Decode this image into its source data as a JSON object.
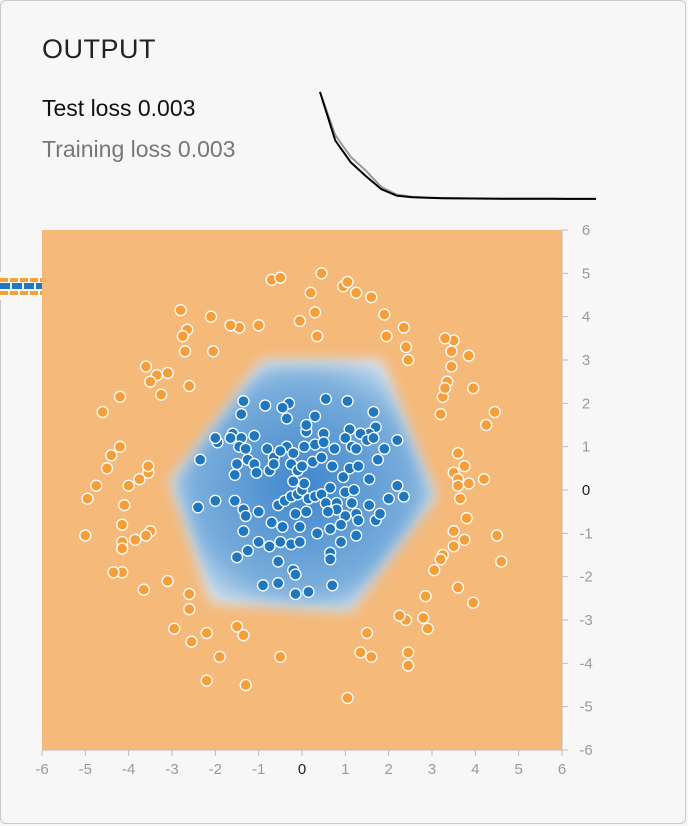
{
  "header": {
    "title": "OUTPUT",
    "test_loss": "Test loss 0.003",
    "training_loss": "Training loss 0.003"
  },
  "loss_curve": {
    "test": [
      1.0,
      0.55,
      0.35,
      0.22,
      0.1,
      0.04,
      0.025,
      0.02,
      0.017,
      0.015,
      0.014,
      0.013,
      0.012,
      0.012,
      0.011,
      0.011,
      0.01,
      0.01,
      0.01
    ],
    "train": [
      1.0,
      0.6,
      0.4,
      0.27,
      0.12,
      0.05,
      0.03,
      0.022,
      0.018,
      0.016,
      0.014,
      0.013,
      0.012,
      0.012,
      0.011,
      0.011,
      0.01,
      0.01,
      0.01
    ]
  },
  "chart_data": {
    "type": "scatter",
    "title": "",
    "xlim": [
      -6,
      6
    ],
    "ylim": [
      -6,
      6
    ],
    "x_ticks": [
      "-6",
      "-5",
      "-4",
      "-3",
      "-2",
      "-1",
      "0",
      "1",
      "2",
      "3",
      "4",
      "5",
      "6"
    ],
    "y_ticks": [
      "6",
      "5",
      "4",
      "3",
      "2",
      "1",
      "0",
      "-1",
      "-2",
      "-3",
      "-4",
      "-5",
      "-6"
    ],
    "highlight_tick": "0",
    "colors": {
      "positive": "#f59f3a",
      "negative": "#1f77c0",
      "background": "#f5b97a",
      "region": "#4a90d2"
    },
    "decision_region": [
      [
        -0.9,
        2.95
      ],
      [
        1.8,
        2.95
      ],
      [
        3.05,
        -0.15
      ],
      [
        1.1,
        -2.75
      ],
      [
        -2.05,
        -2.55
      ],
      [
        -3.0,
        0.2
      ]
    ],
    "series": [
      {
        "class": "orange",
        "points": [
          [
            -0.7,
            4.85
          ],
          [
            -0.5,
            4.9
          ],
          [
            0.45,
            5.0
          ],
          [
            0.2,
            4.55
          ],
          [
            0.95,
            4.7
          ],
          [
            1.05,
            4.8
          ],
          [
            1.25,
            4.55
          ],
          [
            1.6,
            4.45
          ],
          [
            0.3,
            4.1
          ],
          [
            1.9,
            4.05
          ],
          [
            2.35,
            3.75
          ],
          [
            -0.05,
            3.9
          ],
          [
            0.35,
            3.55
          ],
          [
            -1.0,
            3.8
          ],
          [
            -1.45,
            3.75
          ],
          [
            -1.65,
            3.8
          ],
          [
            -2.1,
            4.0
          ],
          [
            -2.8,
            4.15
          ],
          [
            -2.65,
            3.7
          ],
          [
            -2.75,
            3.55
          ],
          [
            -2.05,
            3.2
          ],
          [
            -2.7,
            3.2
          ],
          [
            -3.6,
            2.85
          ],
          [
            -3.35,
            2.65
          ],
          [
            -3.1,
            2.7
          ],
          [
            -3.5,
            2.5
          ],
          [
            -3.25,
            2.2
          ],
          [
            -2.6,
            2.4
          ],
          [
            -4.2,
            2.15
          ],
          [
            -4.6,
            1.8
          ],
          [
            -4.2,
            1.0
          ],
          [
            -4.4,
            0.8
          ],
          [
            -4.5,
            0.5
          ],
          [
            -4.95,
            -0.2
          ],
          [
            -4.75,
            0.1
          ],
          [
            -4.1,
            -0.35
          ],
          [
            -3.55,
            0.4
          ],
          [
            -3.55,
            0.55
          ],
          [
            -3.75,
            0.25
          ],
          [
            -4.0,
            0.1
          ],
          [
            -3.5,
            -0.95
          ],
          [
            -3.6,
            -1.05
          ],
          [
            -4.15,
            -0.8
          ],
          [
            -4.15,
            -1.2
          ],
          [
            -4.15,
            -1.35
          ],
          [
            -3.85,
            -1.15
          ],
          [
            -5.0,
            -1.05
          ],
          [
            -4.15,
            -1.9
          ],
          [
            -4.35,
            -1.9
          ],
          [
            -3.65,
            -2.3
          ],
          [
            -3.1,
            -2.1
          ],
          [
            -2.6,
            -2.4
          ],
          [
            -2.6,
            -2.75
          ],
          [
            -2.95,
            -3.2
          ],
          [
            -2.55,
            -3.5
          ],
          [
            -2.2,
            -3.3
          ],
          [
            -1.5,
            -3.15
          ],
          [
            -1.35,
            -3.35
          ],
          [
            -1.9,
            -3.85
          ],
          [
            -1.3,
            -4.5
          ],
          [
            -0.5,
            -3.85
          ],
          [
            -2.2,
            -4.4
          ],
          [
            1.5,
            -3.3
          ],
          [
            1.35,
            -3.75
          ],
          [
            1.6,
            -3.85
          ],
          [
            1.05,
            -4.8
          ],
          [
            2.4,
            -3.0
          ],
          [
            2.25,
            -2.9
          ],
          [
            2.8,
            -2.95
          ],
          [
            2.9,
            -3.2
          ],
          [
            2.45,
            -3.75
          ],
          [
            2.45,
            -4.05
          ],
          [
            2.85,
            -2.45
          ],
          [
            3.05,
            -1.85
          ],
          [
            3.25,
            -1.5
          ],
          [
            3.2,
            -1.6
          ],
          [
            3.5,
            -1.3
          ],
          [
            3.5,
            -0.95
          ],
          [
            3.8,
            -0.65
          ],
          [
            3.75,
            -1.15
          ],
          [
            3.6,
            -2.25
          ],
          [
            3.95,
            -2.6
          ],
          [
            4.5,
            -1.05
          ],
          [
            4.6,
            -1.65
          ],
          [
            3.5,
            0.4
          ],
          [
            3.6,
            0.25
          ],
          [
            3.6,
            0.1
          ],
          [
            3.65,
            -0.2
          ],
          [
            3.85,
            0.15
          ],
          [
            3.6,
            0.85
          ],
          [
            3.75,
            0.55
          ],
          [
            4.2,
            0.25
          ],
          [
            3.2,
            1.75
          ],
          [
            3.25,
            2.15
          ],
          [
            3.35,
            2.5
          ],
          [
            3.3,
            2.35
          ],
          [
            3.45,
            2.85
          ],
          [
            3.45,
            3.2
          ],
          [
            3.5,
            3.45
          ],
          [
            3.3,
            3.5
          ],
          [
            3.85,
            3.1
          ],
          [
            3.95,
            2.35
          ],
          [
            4.25,
            1.5
          ],
          [
            4.45,
            1.8
          ],
          [
            2.4,
            3.3
          ],
          [
            2.45,
            3.0
          ],
          [
            1.95,
            3.55
          ]
        ]
      },
      {
        "class": "blue",
        "points": [
          [
            0.55,
            2.1
          ],
          [
            1.05,
            2.05
          ],
          [
            -1.35,
            2.05
          ],
          [
            -0.3,
            2.0
          ],
          [
            -0.85,
            1.95
          ],
          [
            -0.45,
            1.9
          ],
          [
            -0.35,
            1.65
          ],
          [
            0.3,
            1.7
          ],
          [
            0.1,
            1.35
          ],
          [
            0.1,
            1.5
          ],
          [
            0.5,
            1.3
          ],
          [
            1.1,
            1.4
          ],
          [
            1.65,
            1.8
          ],
          [
            1.7,
            1.45
          ],
          [
            1.55,
            1.3
          ],
          [
            1.35,
            1.3
          ],
          [
            1.5,
            1.15
          ],
          [
            1.65,
            1.2
          ],
          [
            -1.4,
            1.75
          ],
          [
            -1.6,
            1.3
          ],
          [
            -1.4,
            1.2
          ],
          [
            -1.65,
            1.2
          ],
          [
            -1.95,
            1.1
          ],
          [
            -2.0,
            1.2
          ],
          [
            -1.45,
            1.0
          ],
          [
            -1.1,
            1.25
          ],
          [
            -1.3,
            0.95
          ],
          [
            -1.25,
            0.7
          ],
          [
            -1.5,
            0.6
          ],
          [
            -0.8,
            0.95
          ],
          [
            -0.65,
            0.75
          ],
          [
            -0.35,
            1.0
          ],
          [
            -0.5,
            0.9
          ],
          [
            -0.2,
            0.85
          ],
          [
            0.05,
            1.0
          ],
          [
            0.3,
            1.05
          ],
          [
            0.5,
            1.1
          ],
          [
            0.75,
            0.95
          ],
          [
            1.0,
            1.2
          ],
          [
            1.15,
            1.0
          ],
          [
            1.25,
            0.95
          ],
          [
            1.75,
            0.7
          ],
          [
            1.9,
            0.95
          ],
          [
            2.2,
            1.15
          ],
          [
            -2.35,
            0.7
          ],
          [
            -1.55,
            0.35
          ],
          [
            -1.1,
            0.6
          ],
          [
            -1.05,
            0.4
          ],
          [
            -0.75,
            0.45
          ],
          [
            -0.65,
            0.6
          ],
          [
            -0.25,
            0.6
          ],
          [
            -0.1,
            0.45
          ],
          [
            0.0,
            0.55
          ],
          [
            0.25,
            0.65
          ],
          [
            0.45,
            0.75
          ],
          [
            0.7,
            0.55
          ],
          [
            0.95,
            0.3
          ],
          [
            1.1,
            0.5
          ],
          [
            1.3,
            0.55
          ],
          [
            1.55,
            0.25
          ],
          [
            -2.4,
            -0.4
          ],
          [
            -2.0,
            -0.25
          ],
          [
            -1.55,
            -0.25
          ],
          [
            -1.35,
            -0.45
          ],
          [
            -1.0,
            -0.5
          ],
          [
            -1.3,
            -0.6
          ],
          [
            -0.55,
            -0.35
          ],
          [
            -0.4,
            -0.25
          ],
          [
            -0.25,
            -0.15
          ],
          [
            -0.1,
            -0.1
          ],
          [
            0.0,
            0.0
          ],
          [
            0.05,
            0.15
          ],
          [
            -0.2,
            0.2
          ],
          [
            0.15,
            -0.2
          ],
          [
            0.3,
            -0.15
          ],
          [
            0.45,
            -0.1
          ],
          [
            0.65,
            0.05
          ],
          [
            0.55,
            -0.3
          ],
          [
            0.8,
            -0.3
          ],
          [
            1.0,
            -0.05
          ],
          [
            1.2,
            0.0
          ],
          [
            1.15,
            -0.3
          ],
          [
            1.25,
            -0.55
          ],
          [
            1.0,
            -0.6
          ],
          [
            0.8,
            -0.45
          ],
          [
            1.55,
            -0.35
          ],
          [
            1.7,
            -0.7
          ],
          [
            2.0,
            -0.2
          ],
          [
            2.2,
            0.1
          ],
          [
            2.35,
            -0.15
          ],
          [
            -1.35,
            -0.95
          ],
          [
            -0.7,
            -0.75
          ],
          [
            -0.45,
            -0.85
          ],
          [
            -0.15,
            -0.55
          ],
          [
            -0.05,
            -0.85
          ],
          [
            0.1,
            -0.5
          ],
          [
            0.6,
            -0.5
          ],
          [
            0.35,
            -1.0
          ],
          [
            0.65,
            -0.9
          ],
          [
            0.9,
            -0.8
          ],
          [
            1.3,
            -0.7
          ],
          [
            1.8,
            -0.55
          ],
          [
            -1.25,
            -1.4
          ],
          [
            -0.75,
            -1.3
          ],
          [
            -0.5,
            -1.2
          ],
          [
            -0.25,
            -1.25
          ],
          [
            -0.05,
            -1.2
          ],
          [
            0.65,
            -1.45
          ],
          [
            0.65,
            -1.6
          ],
          [
            0.9,
            -1.2
          ],
          [
            -0.55,
            -1.65
          ],
          [
            -0.2,
            -1.85
          ],
          [
            -0.15,
            -1.95
          ],
          [
            -1.0,
            -1.2
          ],
          [
            -1.5,
            -1.55
          ],
          [
            -0.9,
            -2.2
          ],
          [
            -0.55,
            -2.15
          ],
          [
            -0.15,
            -2.4
          ],
          [
            0.15,
            -2.35
          ],
          [
            0.7,
            -2.2
          ],
          [
            1.25,
            -1.05
          ]
        ]
      }
    ]
  }
}
